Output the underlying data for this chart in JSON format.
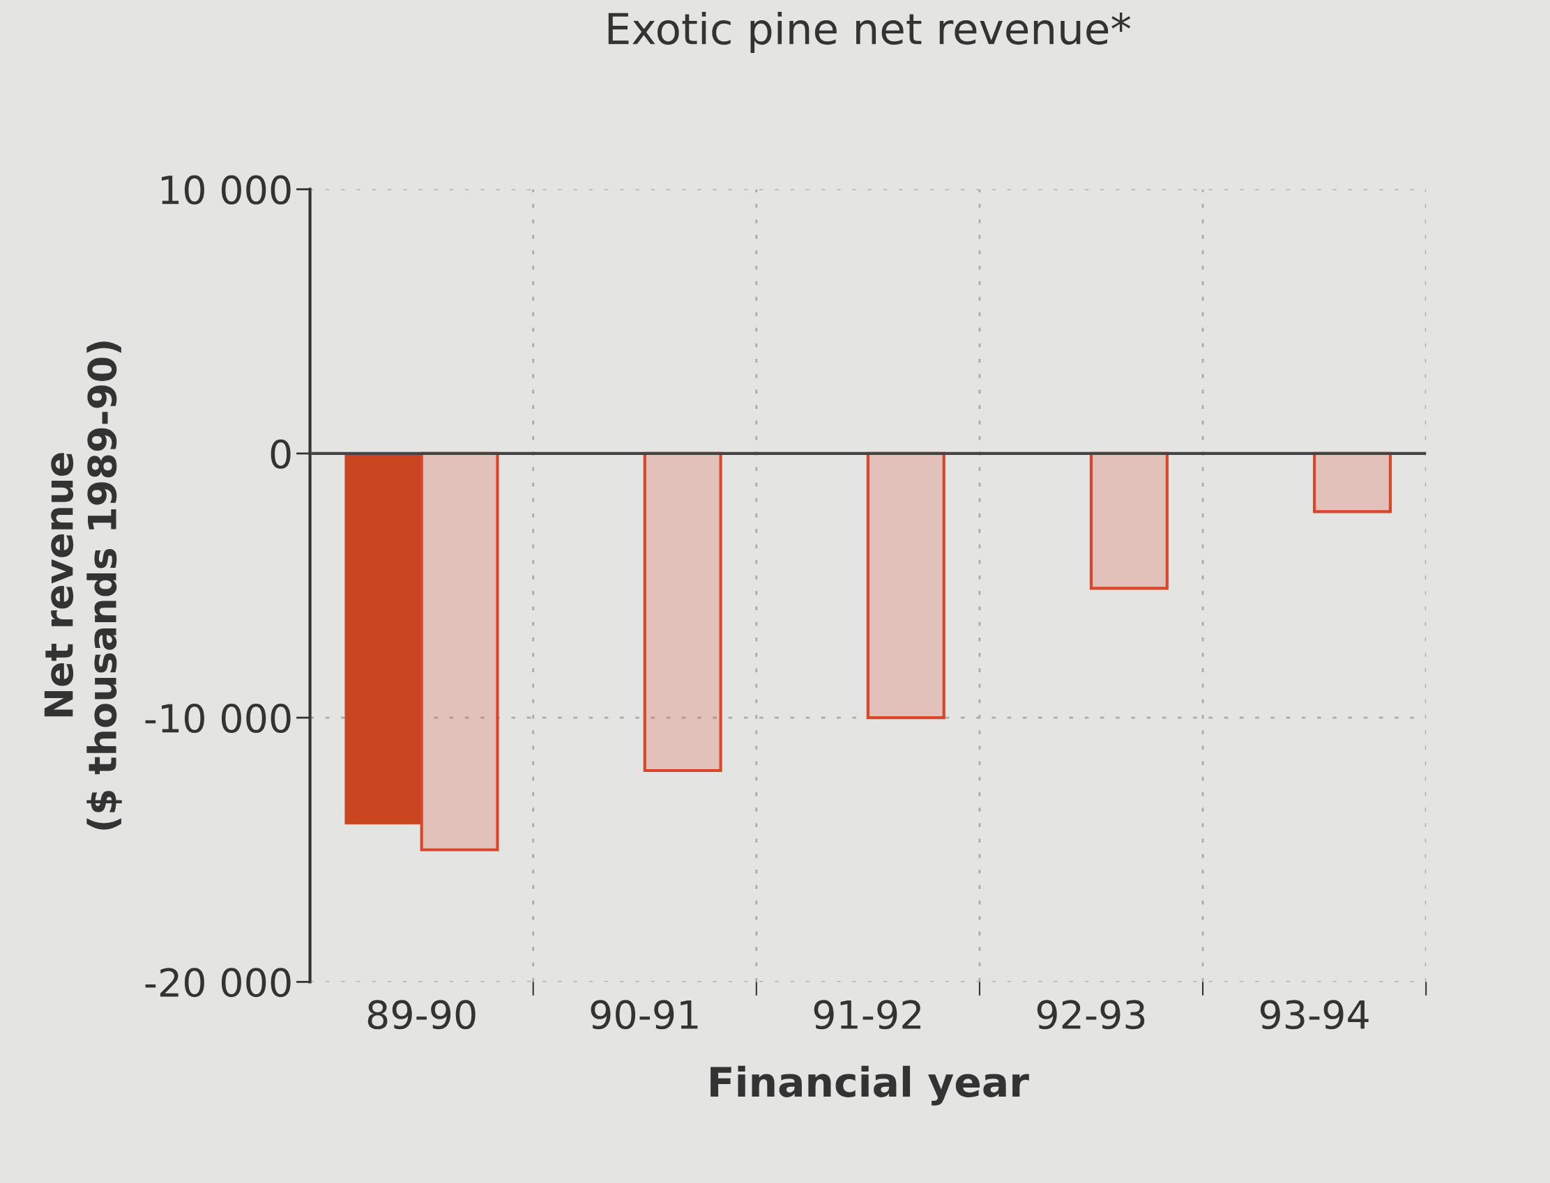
{
  "chart_data": {
    "type": "bar",
    "title": "Exotic pine net revenue*",
    "xlabel": "Financial year",
    "ylabel": "Net revenue\n($ thousands 1989-90)",
    "categories": [
      "89-90",
      "90-91",
      "91-92",
      "92-93",
      "93-94"
    ],
    "series": [
      {
        "color": "#c8451f",
        "values": [
          -14000,
          null,
          null,
          null,
          null
        ]
      },
      {
        "color": "#d9462a",
        "values": [
          -15000,
          -12000,
          -10000,
          -5100,
          -2200
        ]
      }
    ],
    "ylim": [
      -20000,
      10000
    ],
    "yticks": [
      {
        "value": 10000,
        "label": "10 000"
      },
      0,
      {
        "value": -10000,
        "label": "-10 000"
      },
      {
        "value": -20000,
        "label": "-20 000"
      }
    ],
    "grid": true
  }
}
